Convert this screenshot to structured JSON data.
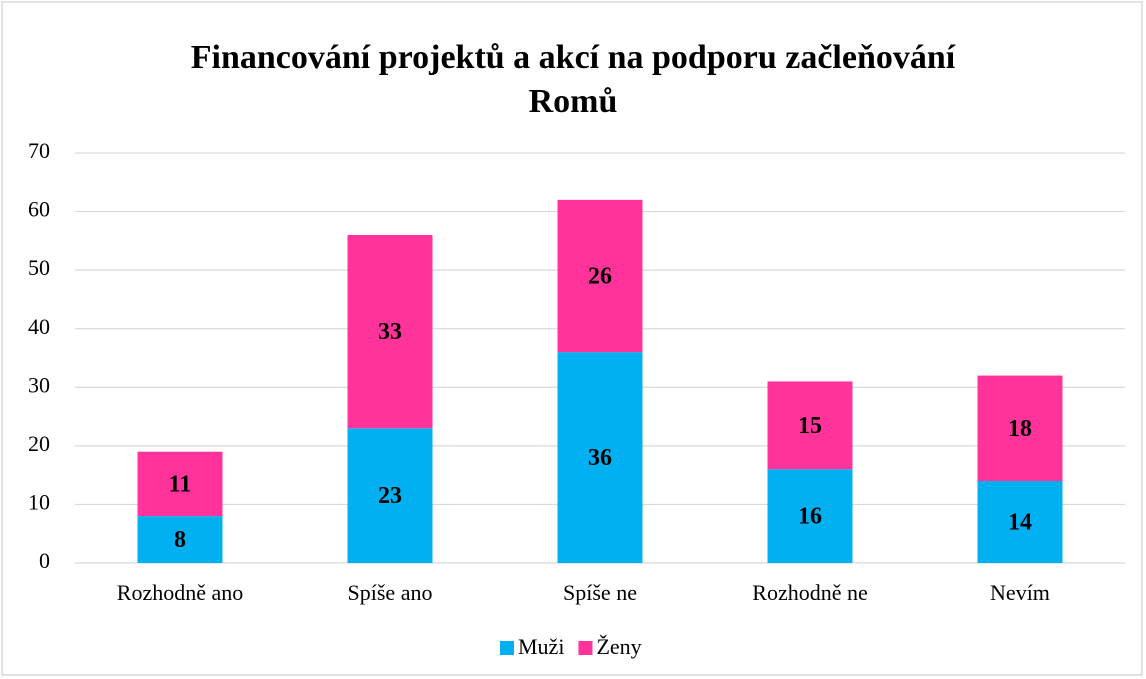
{
  "chart_data": {
    "type": "stacked_bar",
    "title": "Financování projektů a akcí na podporu začleňování Romů",
    "categories": [
      "Rozhodně ano",
      "Spíše ano",
      "Spíše ne",
      "Rozhodně ne",
      "Nevím"
    ],
    "series": [
      {
        "name": "Muži",
        "color": "#00b0f0",
        "values": [
          8,
          23,
          36,
          16,
          14
        ]
      },
      {
        "name": "Ženy",
        "color": "#ff3399",
        "values": [
          11,
          33,
          26,
          15,
          18
        ]
      }
    ],
    "ylim": [
      0,
      70
    ],
    "yticks": [
      0,
      10,
      20,
      30,
      40,
      50,
      60,
      70
    ],
    "grid": true,
    "legend": "bottom"
  }
}
